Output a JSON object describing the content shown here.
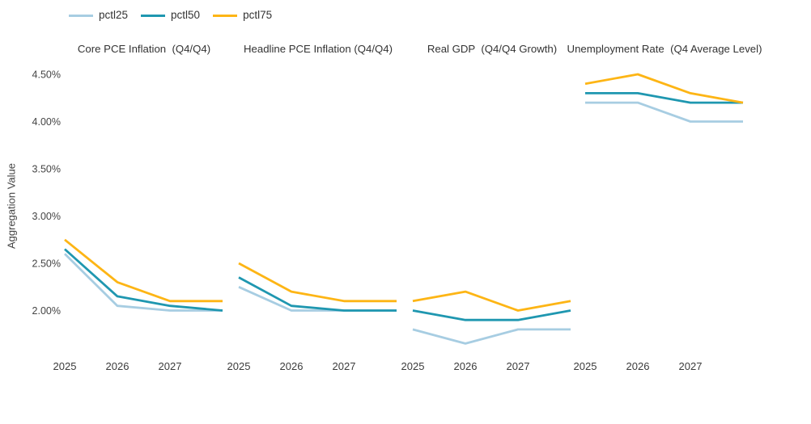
{
  "page": {
    "background_color": "#ffffff"
  },
  "chart_data": {
    "type": "line",
    "title": "",
    "ylabel": "Aggregation Value",
    "xlabel": "",
    "grid": false,
    "legend_position": "top-left",
    "ylim": [
      1.55,
      4.65
    ],
    "yticks": [
      {
        "label": "4.50%",
        "value": 4.5
      },
      {
        "label": "4.00%",
        "value": 4.0
      },
      {
        "label": "3.50%",
        "value": 3.5
      },
      {
        "label": "3.00%",
        "value": 3.0
      },
      {
        "label": "2.50%",
        "value": 2.5
      },
      {
        "label": "2.00%",
        "value": 2.0
      }
    ],
    "x_tick_labels": [
      "2025",
      "2026",
      "2027"
    ],
    "points_per_facet": 4,
    "fourth_point_unlabeled": true,
    "legend": [
      {
        "name": "pctl25",
        "label": "pctl25",
        "color": "#a7cde2"
      },
      {
        "name": "pctl50",
        "label": "pctl50",
        "color": "#1f97b0"
      },
      {
        "name": "pctl75",
        "label": "pctl75",
        "color": "#fdb515"
      }
    ],
    "facets": [
      {
        "title": "Core PCE Inflation  (Q4/Q4)",
        "series": [
          {
            "name": "pctl25",
            "values": [
              2.6,
              2.05,
              2.0,
              2.0
            ]
          },
          {
            "name": "pctl50",
            "values": [
              2.65,
              2.15,
              2.05,
              2.0
            ]
          },
          {
            "name": "pctl75",
            "values": [
              2.75,
              2.3,
              2.1,
              2.1
            ]
          }
        ]
      },
      {
        "title": "Headline PCE Inflation (Q4/Q4)",
        "series": [
          {
            "name": "pctl25",
            "values": [
              2.25,
              2.0,
              2.0,
              2.0
            ]
          },
          {
            "name": "pctl50",
            "values": [
              2.35,
              2.05,
              2.0,
              2.0
            ]
          },
          {
            "name": "pctl75",
            "values": [
              2.5,
              2.2,
              2.1,
              2.1
            ]
          }
        ]
      },
      {
        "title": "Real GDP  (Q4/Q4 Growth)",
        "series": [
          {
            "name": "pctl25",
            "values": [
              1.8,
              1.65,
              1.8,
              1.8
            ]
          },
          {
            "name": "pctl50",
            "values": [
              2.0,
              1.9,
              1.9,
              2.0
            ]
          },
          {
            "name": "pctl75",
            "values": [
              2.1,
              2.2,
              2.0,
              2.1
            ]
          }
        ]
      },
      {
        "title": "Unemployment Rate  (Q4 Average Level)",
        "series": [
          {
            "name": "pctl25",
            "values": [
              4.2,
              4.2,
              4.0,
              4.0
            ]
          },
          {
            "name": "pctl50",
            "values": [
              4.3,
              4.3,
              4.2,
              4.2
            ]
          },
          {
            "name": "pctl75",
            "values": [
              4.4,
              4.5,
              4.3,
              4.2
            ]
          }
        ]
      }
    ]
  }
}
